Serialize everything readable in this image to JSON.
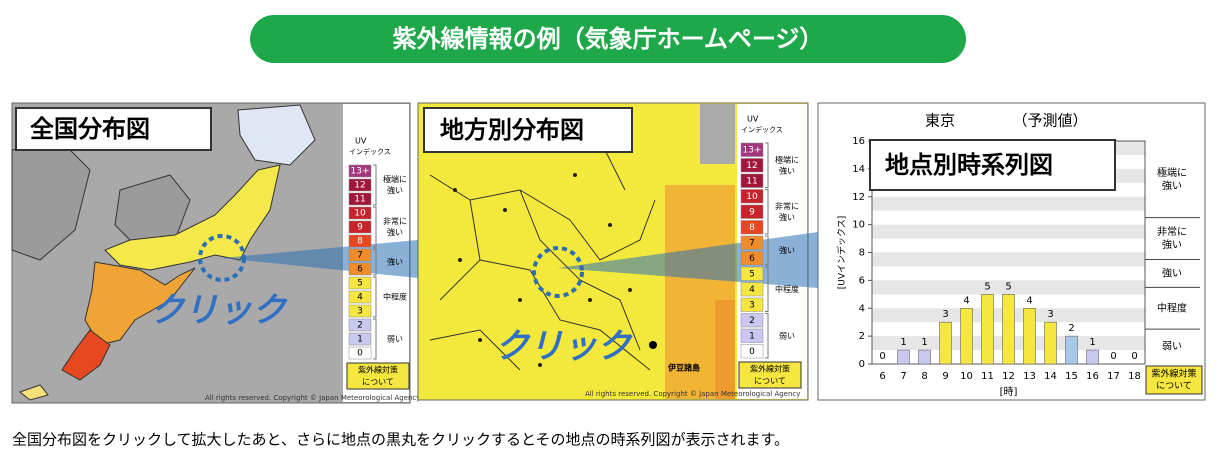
{
  "header": {
    "title": "紫外線情報の例（気象庁ホームページ）"
  },
  "legend": {
    "title": "UV",
    "subtitle": "インデックス",
    "levels": [
      {
        "label": "13+",
        "color": "#a3377e"
      },
      {
        "label": "12",
        "color": "#a3163c"
      },
      {
        "label": "11",
        "color": "#a3163c"
      },
      {
        "label": "10",
        "color": "#c8232b"
      },
      {
        "label": "9",
        "color": "#c8232b"
      },
      {
        "label": "8",
        "color": "#e8461f"
      },
      {
        "label": "7",
        "color": "#f08c2a"
      },
      {
        "label": "6",
        "color": "#f08c2a"
      },
      {
        "label": "5",
        "color": "#f5e640"
      },
      {
        "label": "4",
        "color": "#f5e640"
      },
      {
        "label": "3",
        "color": "#f5e640"
      },
      {
        "label": "2",
        "color": "#c9c9ef"
      },
      {
        "label": "1",
        "color": "#c9c9ef"
      },
      {
        "label": "0",
        "color": "#ffffff"
      }
    ],
    "bands": [
      [
        "極端に",
        "強い"
      ],
      [
        "非常に",
        "強い"
      ],
      [
        "強い"
      ],
      [
        "中程度"
      ],
      [
        "弱い"
      ]
    ],
    "button": [
      "紫外線対策",
      "について"
    ]
  },
  "panels": [
    {
      "title": "全国分布図",
      "click": "クリック",
      "copyright": "All rights reserved. Copyright © Japan Meteorological Agency"
    },
    {
      "title": "地方別分布図",
      "click": "クリック",
      "copyright": "All rights reserved. Copyright © Japan Meteorological Agency",
      "islands": "伊豆諸島"
    },
    {
      "title": "地点別時系列図"
    }
  ],
  "chart_data": {
    "type": "bar",
    "title": "東京",
    "subtitle": "（予測値）",
    "x_label": "[時]",
    "y_label": "[UVインデックス]",
    "categories": [
      "6",
      "7",
      "8",
      "9",
      "10",
      "11",
      "12",
      "13",
      "14",
      "15",
      "16",
      "17",
      "18"
    ],
    "values": [
      0,
      1,
      1,
      3,
      4,
      5,
      5,
      4,
      3,
      2,
      1,
      0,
      0
    ],
    "colors": [
      "#c9c9ef",
      "#c9c9ef",
      "#c9c9ef",
      "#f5e640",
      "#f5e640",
      "#f5e640",
      "#f5e640",
      "#f5e640",
      "#f5e640",
      "#a8c8ea",
      "#c9c9ef",
      "#c9c9ef",
      "#c9c9ef"
    ],
    "ylim": [
      0,
      16
    ],
    "yticks": [
      0,
      2,
      4,
      6,
      8,
      10,
      12,
      14,
      16
    ],
    "grid": true
  },
  "caption": "全国分布図をクリックして拡大したあと、さらに地点の黒丸をクリックするとその地点の時系列図が表示されます。"
}
